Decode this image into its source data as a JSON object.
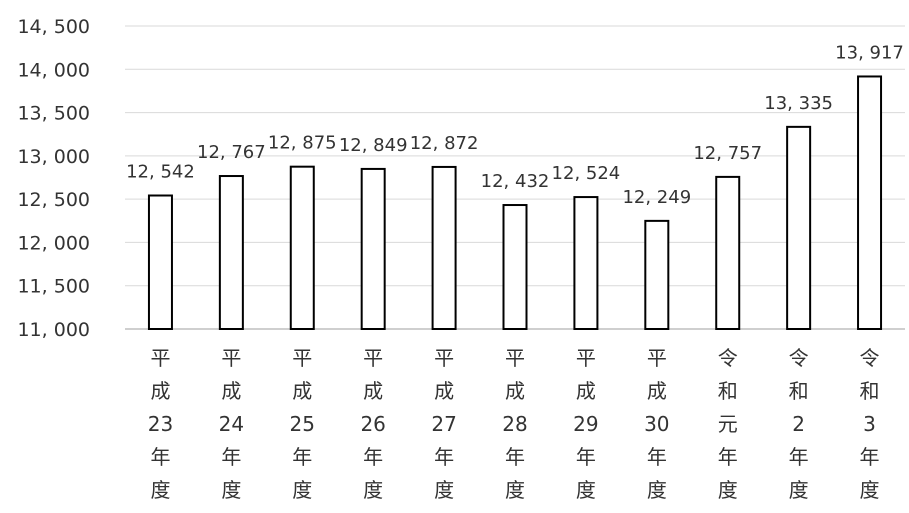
{
  "chart_data": {
    "type": "bar",
    "categories": [
      "平成23年度",
      "平成24年度",
      "平成25年度",
      "平成26年度",
      "平成27年度",
      "平成28年度",
      "平成29年度",
      "平成30年度",
      "令和元年度",
      "令和2年度",
      "令和3年度"
    ],
    "category_label_lines": [
      [
        "平",
        "成",
        "23",
        "年",
        "度"
      ],
      [
        "平",
        "成",
        "24",
        "年",
        "度"
      ],
      [
        "平",
        "成",
        "25",
        "年",
        "度"
      ],
      [
        "平",
        "成",
        "26",
        "年",
        "度"
      ],
      [
        "平",
        "成",
        "27",
        "年",
        "度"
      ],
      [
        "平",
        "成",
        "28",
        "年",
        "度"
      ],
      [
        "平",
        "成",
        "29",
        "年",
        "度"
      ],
      [
        "平",
        "成",
        "30",
        "年",
        "度"
      ],
      [
        "令",
        "和",
        "元",
        "年",
        "度"
      ],
      [
        "令",
        "和",
        "2",
        "年",
        "度"
      ],
      [
        "令",
        "和",
        "3",
        "年",
        "度"
      ]
    ],
    "values": [
      12542,
      12767,
      12875,
      12849,
      12872,
      12432,
      12524,
      12249,
      12757,
      13335,
      13917
    ],
    "data_labels": [
      "12, 542",
      "12, 767",
      "12, 875",
      "12, 849",
      "12, 872",
      "12, 432",
      "12, 524",
      "12, 249",
      "12, 757",
      "13, 335",
      "13, 917"
    ],
    "ylim": [
      11000,
      14500
    ],
    "y_ticks": [
      11000,
      11500,
      12000,
      12500,
      13000,
      13500,
      14000,
      14500
    ],
    "y_tick_labels": [
      "11, 000",
      "11, 500",
      "12, 000",
      "12, 500",
      "13, 000",
      "13, 500",
      "14, 000",
      "14, 500"
    ],
    "grid": true,
    "title": "",
    "xlabel": "",
    "ylabel": "",
    "colors": {
      "bar_fill": "#ffffff",
      "bar_stroke": "#000000",
      "grid": "#d9d9d9",
      "text": "#333333"
    }
  }
}
